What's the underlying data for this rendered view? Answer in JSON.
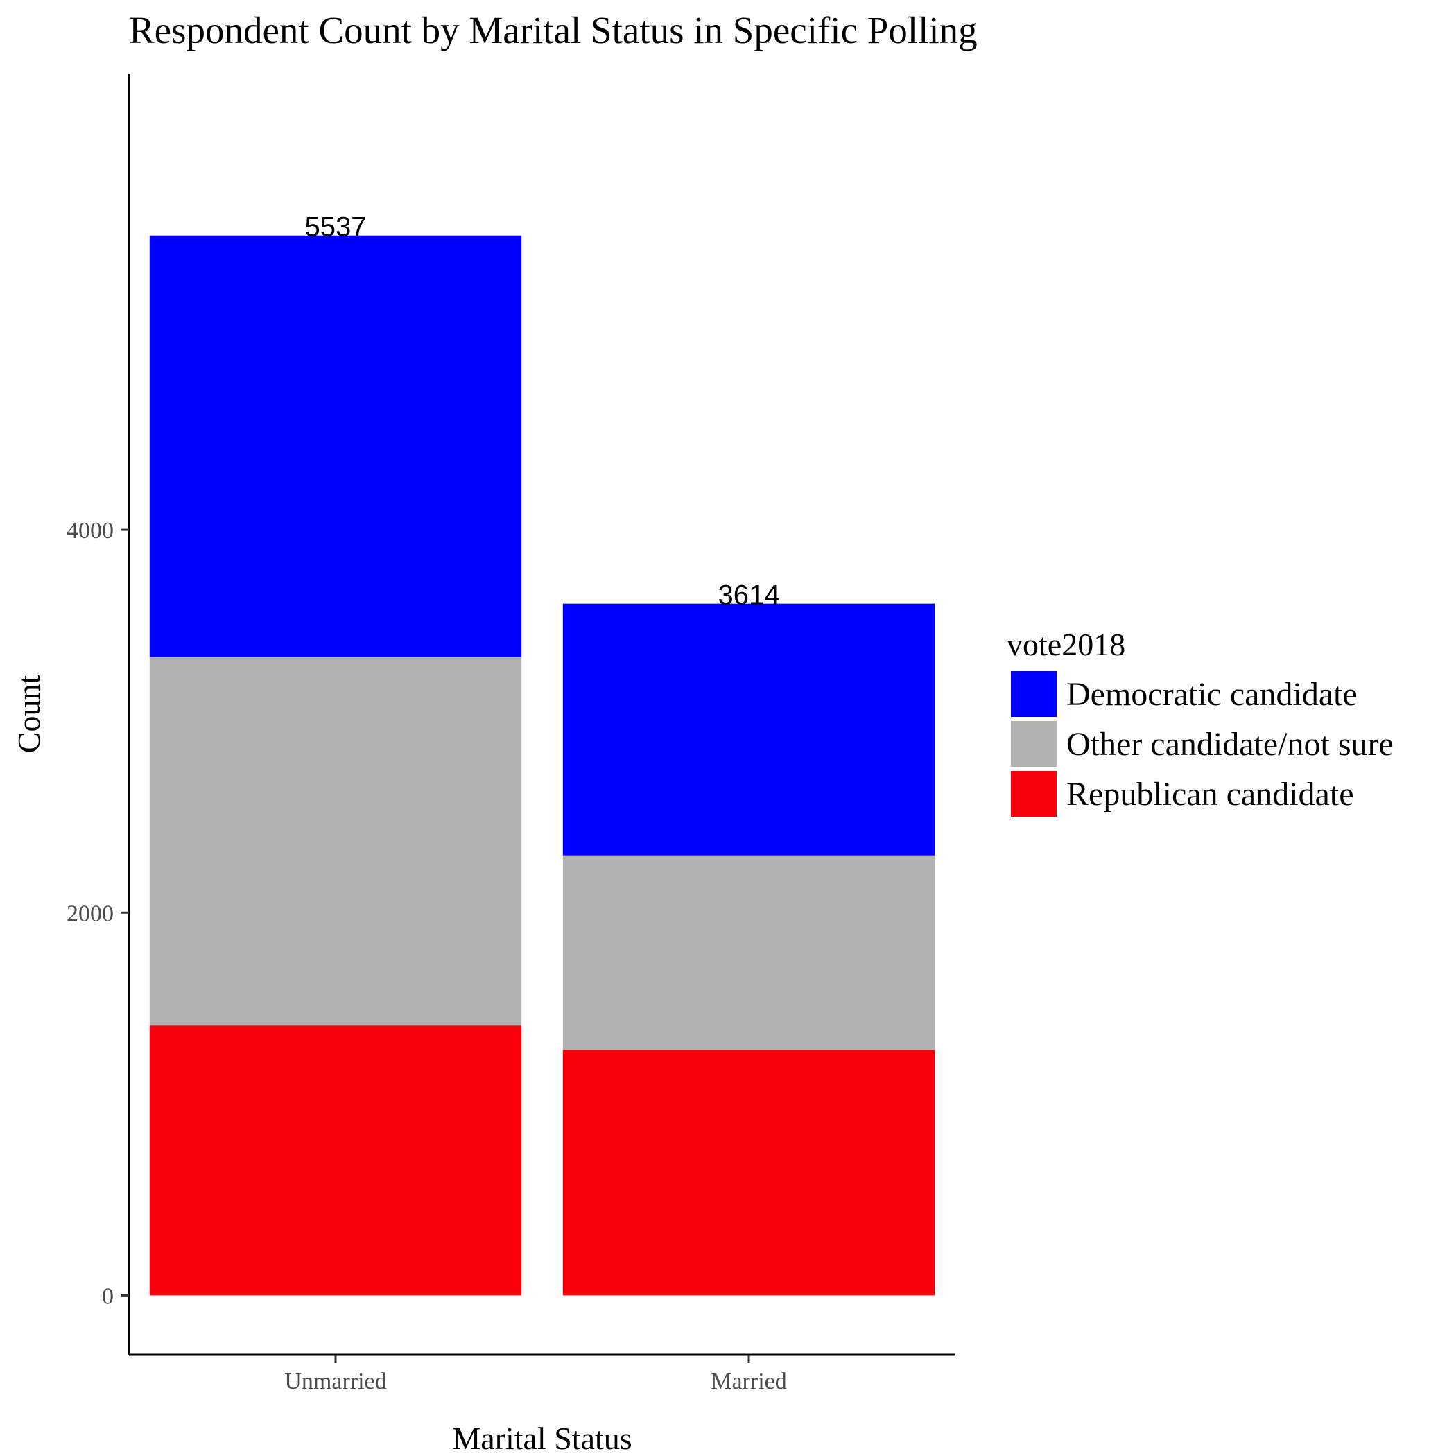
{
  "chart_data": {
    "type": "bar",
    "stacked": true,
    "title": "Respondent Count by Marital Status in Specific Polling",
    "xlabel": "Marital Status",
    "ylabel": "Count",
    "categories": [
      "Unmarried",
      "Married"
    ],
    "ylim": [
      -310,
      6380
    ],
    "yticks": [
      0,
      2000,
      4000
    ],
    "ytick_labels": [
      "0",
      "2000",
      "4000"
    ],
    "series": [
      {
        "name": "Republican candidate",
        "color": "#f8000b",
        "values": [
          1410,
          1283
        ]
      },
      {
        "name": "Other candidate/not sure",
        "color": "#b2b2b2",
        "values": [
          1925,
          1016
        ]
      },
      {
        "name": "Democratic candidate",
        "color": "#0000ff",
        "values": [
          2202,
          1315
        ]
      }
    ],
    "totals": [
      5537,
      3614
    ],
    "total_labels": [
      "5537",
      "3614"
    ],
    "legend": {
      "title": "vote2018",
      "placement": "right",
      "entries": [
        {
          "label": "Democratic candidate",
          "color": "#0000ff"
        },
        {
          "label": "Other candidate/not sure",
          "color": "#b2b2b2"
        },
        {
          "label": "Republican candidate",
          "color": "#f8000b"
        }
      ]
    },
    "grid": false
  }
}
